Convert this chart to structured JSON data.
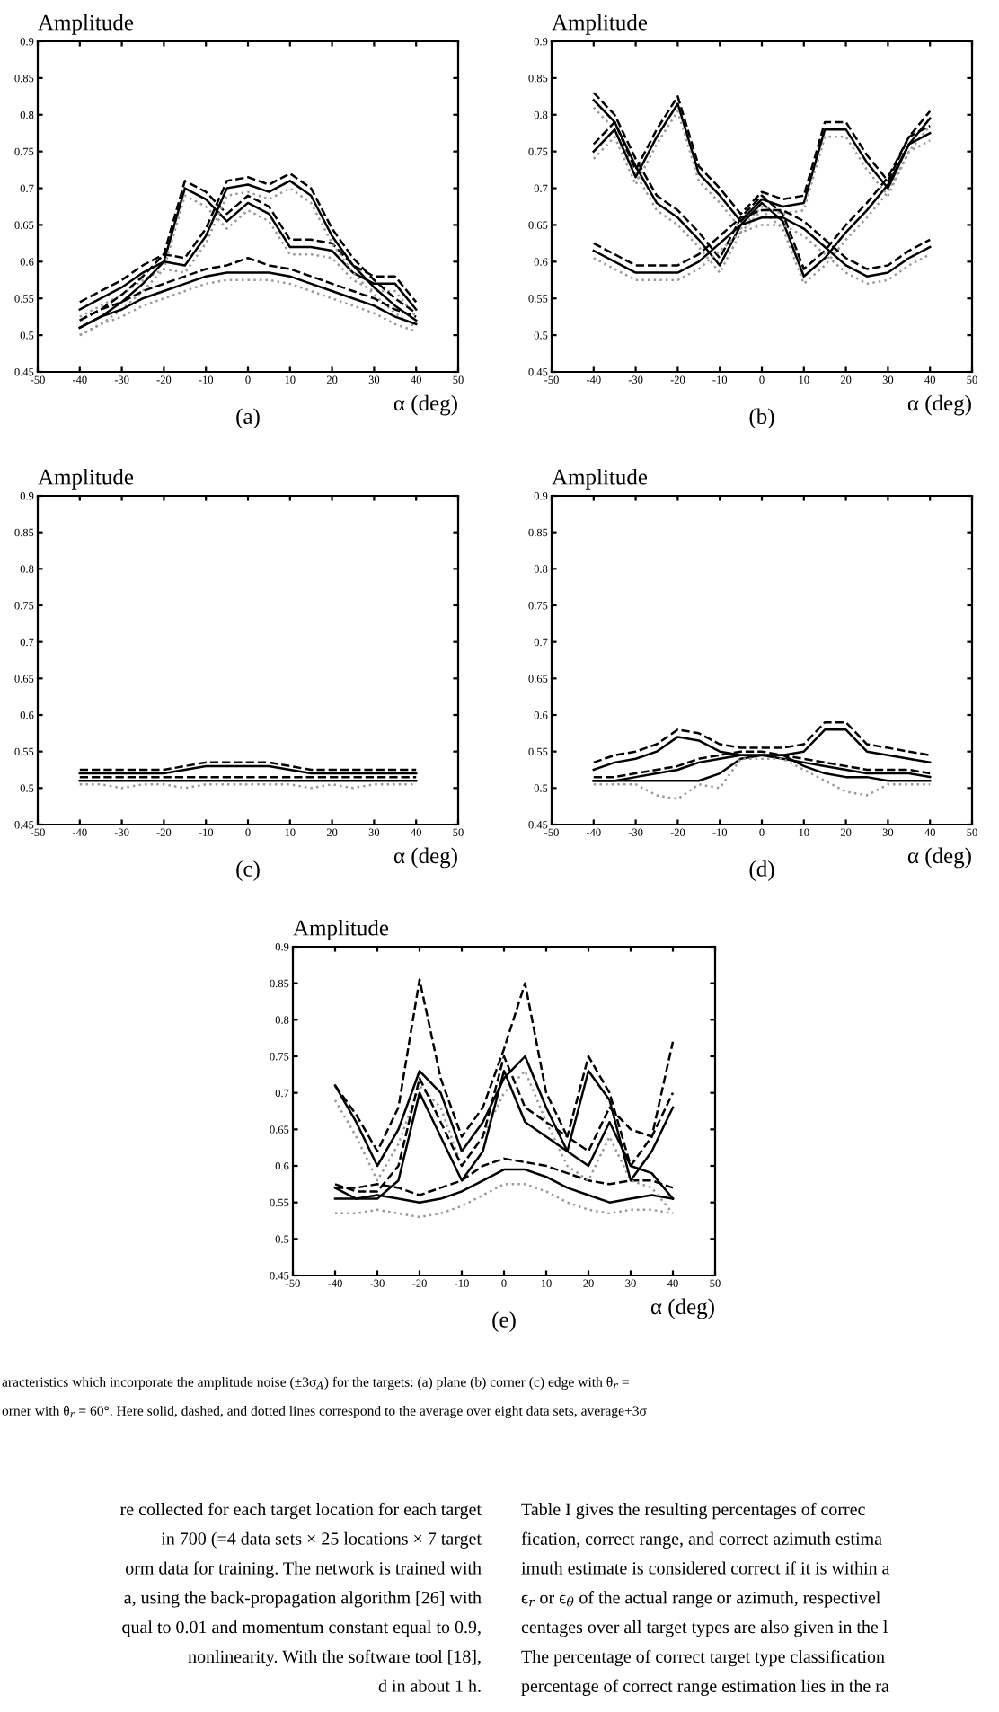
{
  "chart_data": [
    {
      "type": "line",
      "title": "Amplitude",
      "xlabel": "α (deg)",
      "annotations": [
        "(a)"
      ],
      "x": [
        -40,
        -35,
        -30,
        -25,
        -20,
        -15,
        -10,
        -5,
        0,
        5,
        10,
        15,
        20,
        25,
        30,
        35,
        40
      ],
      "xlim": [
        -50,
        50
      ],
      "xticks": [
        -50,
        -40,
        -30,
        -20,
        -10,
        0,
        10,
        20,
        30,
        40,
        50
      ],
      "ylim": [
        0.45,
        0.9
      ],
      "yticks": [
        0.45,
        0.5,
        0.55,
        0.6,
        0.65,
        0.7,
        0.75,
        0.8,
        0.85,
        0.9
      ],
      "series": [
        {
          "color": "#000000",
          "line_style": "solid",
          "values": [
            0.535,
            0.55,
            0.565,
            0.585,
            0.6,
            0.7,
            0.685,
            0.655,
            0.68,
            0.665,
            0.62,
            0.62,
            0.615,
            0.585,
            0.57,
            0.57,
            0.535
          ]
        },
        {
          "color": "#000000",
          "line_style": "dashed",
          "values": [
            0.545,
            0.56,
            0.575,
            0.595,
            0.61,
            0.71,
            0.695,
            0.665,
            0.69,
            0.675,
            0.63,
            0.63,
            0.625,
            0.595,
            0.58,
            0.58,
            0.545
          ]
        },
        {
          "color": "#999999",
          "line_style": "dotted",
          "values": [
            0.525,
            0.54,
            0.555,
            0.575,
            0.59,
            0.69,
            0.675,
            0.645,
            0.67,
            0.655,
            0.61,
            0.61,
            0.605,
            0.575,
            0.56,
            0.56,
            0.525
          ]
        },
        {
          "color": "#000000",
          "line_style": "solid",
          "values": [
            0.51,
            0.525,
            0.545,
            0.57,
            0.6,
            0.595,
            0.635,
            0.7,
            0.705,
            0.695,
            0.71,
            0.69,
            0.635,
            0.595,
            0.565,
            0.54,
            0.52
          ]
        },
        {
          "color": "#000000",
          "line_style": "dashed",
          "values": [
            0.52,
            0.535,
            0.555,
            0.58,
            0.61,
            0.605,
            0.645,
            0.71,
            0.715,
            0.705,
            0.72,
            0.7,
            0.645,
            0.605,
            0.575,
            0.55,
            0.53
          ]
        },
        {
          "color": "#999999",
          "line_style": "dotted",
          "values": [
            0.5,
            0.515,
            0.535,
            0.56,
            0.59,
            0.585,
            0.625,
            0.69,
            0.695,
            0.685,
            0.7,
            0.68,
            0.625,
            0.585,
            0.555,
            0.53,
            0.51
          ]
        },
        {
          "color": "#000000",
          "line_style": "solid",
          "values": [
            0.51,
            0.525,
            0.535,
            0.55,
            0.56,
            0.57,
            0.58,
            0.585,
            0.585,
            0.585,
            0.58,
            0.57,
            0.56,
            0.55,
            0.54,
            0.525,
            0.515
          ]
        },
        {
          "color": "#000000",
          "line_style": "dashed",
          "values": [
            0.52,
            0.535,
            0.545,
            0.56,
            0.57,
            0.58,
            0.59,
            0.595,
            0.605,
            0.595,
            0.59,
            0.58,
            0.57,
            0.56,
            0.55,
            0.535,
            0.525
          ]
        },
        {
          "color": "#999999",
          "line_style": "dotted",
          "values": [
            0.5,
            0.515,
            0.525,
            0.54,
            0.55,
            0.56,
            0.57,
            0.575,
            0.575,
            0.575,
            0.57,
            0.56,
            0.55,
            0.54,
            0.53,
            0.515,
            0.505
          ]
        }
      ]
    },
    {
      "type": "line",
      "title": "Amplitude",
      "xlabel": "α (deg)",
      "annotations": [
        "(b)"
      ],
      "x": [
        -40,
        -35,
        -30,
        -25,
        -20,
        -15,
        -10,
        -5,
        0,
        5,
        10,
        15,
        20,
        25,
        30,
        35,
        40
      ],
      "xlim": [
        -50,
        50
      ],
      "xticks": [
        -50,
        -40,
        -30,
        -20,
        -10,
        0,
        10,
        20,
        30,
        40,
        50
      ],
      "ylim": [
        0.45,
        0.9
      ],
      "yticks": [
        0.45,
        0.5,
        0.55,
        0.6,
        0.65,
        0.7,
        0.75,
        0.8,
        0.85,
        0.9
      ],
      "series": [
        {
          "color": "#000000",
          "line_style": "solid",
          "values": [
            0.82,
            0.79,
            0.73,
            0.68,
            0.66,
            0.63,
            0.595,
            0.65,
            0.68,
            0.655,
            0.58,
            0.605,
            0.64,
            0.67,
            0.705,
            0.76,
            0.795
          ]
        },
        {
          "color": "#000000",
          "line_style": "dashed",
          "values": [
            0.83,
            0.8,
            0.74,
            0.69,
            0.67,
            0.64,
            0.605,
            0.66,
            0.69,
            0.665,
            0.59,
            0.615,
            0.65,
            0.68,
            0.715,
            0.77,
            0.805
          ]
        },
        {
          "color": "#999999",
          "line_style": "dotted",
          "values": [
            0.81,
            0.78,
            0.72,
            0.67,
            0.65,
            0.62,
            0.585,
            0.64,
            0.67,
            0.645,
            0.57,
            0.595,
            0.63,
            0.66,
            0.695,
            0.75,
            0.785
          ]
        },
        {
          "color": "#000000",
          "line_style": "solid",
          "values": [
            0.75,
            0.78,
            0.715,
            0.77,
            0.815,
            0.72,
            0.69,
            0.655,
            0.685,
            0.675,
            0.68,
            0.78,
            0.78,
            0.735,
            0.7,
            0.76,
            0.775
          ]
        },
        {
          "color": "#000000",
          "line_style": "dashed",
          "values": [
            0.76,
            0.79,
            0.725,
            0.78,
            0.825,
            0.73,
            0.7,
            0.665,
            0.695,
            0.685,
            0.69,
            0.79,
            0.79,
            0.745,
            0.71,
            0.77,
            0.785
          ]
        },
        {
          "color": "#999999",
          "line_style": "dotted",
          "values": [
            0.74,
            0.77,
            0.705,
            0.76,
            0.805,
            0.71,
            0.68,
            0.645,
            0.675,
            0.665,
            0.67,
            0.77,
            0.77,
            0.725,
            0.69,
            0.75,
            0.765
          ]
        },
        {
          "color": "#000000",
          "line_style": "solid",
          "values": [
            0.615,
            0.6,
            0.585,
            0.585,
            0.585,
            0.6,
            0.625,
            0.65,
            0.66,
            0.66,
            0.645,
            0.62,
            0.595,
            0.58,
            0.585,
            0.605,
            0.62
          ]
        },
        {
          "color": "#000000",
          "line_style": "dashed",
          "values": [
            0.625,
            0.61,
            0.595,
            0.595,
            0.595,
            0.61,
            0.635,
            0.66,
            0.67,
            0.67,
            0.655,
            0.63,
            0.605,
            0.59,
            0.595,
            0.615,
            0.63
          ]
        },
        {
          "color": "#999999",
          "line_style": "dotted",
          "values": [
            0.605,
            0.59,
            0.575,
            0.575,
            0.575,
            0.59,
            0.615,
            0.64,
            0.65,
            0.65,
            0.635,
            0.61,
            0.585,
            0.57,
            0.575,
            0.595,
            0.61
          ]
        }
      ]
    },
    {
      "type": "line",
      "title": "Amplitude",
      "xlabel": "α (deg)",
      "annotations": [
        "(c)"
      ],
      "x": [
        -40,
        -35,
        -30,
        -25,
        -20,
        -15,
        -10,
        -5,
        0,
        5,
        10,
        15,
        20,
        25,
        30,
        35,
        40
      ],
      "xlim": [
        -50,
        50
      ],
      "xticks": [
        -50,
        -40,
        -30,
        -20,
        -10,
        0,
        10,
        20,
        30,
        40,
        50
      ],
      "ylim": [
        0.45,
        0.9
      ],
      "yticks": [
        0.45,
        0.5,
        0.55,
        0.6,
        0.65,
        0.7,
        0.75,
        0.8,
        0.85,
        0.9
      ],
      "series": [
        {
          "color": "#000000",
          "line_style": "solid",
          "values": [
            0.52,
            0.52,
            0.52,
            0.52,
            0.52,
            0.525,
            0.53,
            0.53,
            0.53,
            0.53,
            0.525,
            0.52,
            0.52,
            0.52,
            0.52,
            0.52,
            0.52
          ]
        },
        {
          "color": "#000000",
          "line_style": "dashed",
          "values": [
            0.525,
            0.525,
            0.525,
            0.525,
            0.525,
            0.53,
            0.535,
            0.535,
            0.535,
            0.535,
            0.53,
            0.525,
            0.525,
            0.525,
            0.525,
            0.525,
            0.525
          ]
        },
        {
          "color": "#000000",
          "line_style": "solid",
          "values": [
            0.51,
            0.51,
            0.51,
            0.51,
            0.51,
            0.51,
            0.51,
            0.51,
            0.51,
            0.51,
            0.51,
            0.51,
            0.51,
            0.51,
            0.51,
            0.51,
            0.51
          ]
        },
        {
          "color": "#000000",
          "line_style": "dashed",
          "values": [
            0.515,
            0.515,
            0.515,
            0.515,
            0.515,
            0.515,
            0.515,
            0.515,
            0.515,
            0.515,
            0.515,
            0.515,
            0.515,
            0.515,
            0.515,
            0.515,
            0.515
          ]
        },
        {
          "color": "#999999",
          "line_style": "dotted",
          "values": [
            0.505,
            0.505,
            0.5,
            0.505,
            0.505,
            0.5,
            0.505,
            0.505,
            0.505,
            0.505,
            0.505,
            0.5,
            0.505,
            0.5,
            0.505,
            0.505,
            0.505
          ]
        }
      ]
    },
    {
      "type": "line",
      "title": "Amplitude",
      "xlabel": "α (deg)",
      "annotations": [
        "(d)"
      ],
      "x": [
        -40,
        -35,
        -30,
        -25,
        -20,
        -15,
        -10,
        -5,
        0,
        5,
        10,
        15,
        20,
        25,
        30,
        35,
        40
      ],
      "xlim": [
        -50,
        50
      ],
      "xticks": [
        -50,
        -40,
        -30,
        -20,
        -10,
        0,
        10,
        20,
        30,
        40,
        50
      ],
      "ylim": [
        0.45,
        0.9
      ],
      "yticks": [
        0.45,
        0.5,
        0.55,
        0.6,
        0.65,
        0.7,
        0.75,
        0.8,
        0.85,
        0.9
      ],
      "series": [
        {
          "color": "#000000",
          "line_style": "solid",
          "values": [
            0.525,
            0.535,
            0.54,
            0.55,
            0.57,
            0.565,
            0.55,
            0.545,
            0.545,
            0.545,
            0.55,
            0.58,
            0.58,
            0.55,
            0.545,
            0.54,
            0.535
          ]
        },
        {
          "color": "#000000",
          "line_style": "dashed",
          "values": [
            0.535,
            0.545,
            0.55,
            0.56,
            0.58,
            0.575,
            0.56,
            0.555,
            0.555,
            0.555,
            0.56,
            0.59,
            0.59,
            0.56,
            0.555,
            0.55,
            0.545
          ]
        },
        {
          "color": "#000000",
          "line_style": "solid",
          "values": [
            0.51,
            0.51,
            0.515,
            0.52,
            0.525,
            0.535,
            0.54,
            0.545,
            0.545,
            0.54,
            0.535,
            0.53,
            0.525,
            0.52,
            0.52,
            0.52,
            0.515
          ]
        },
        {
          "color": "#000000",
          "line_style": "dashed",
          "values": [
            0.515,
            0.515,
            0.52,
            0.525,
            0.53,
            0.54,
            0.545,
            0.55,
            0.55,
            0.545,
            0.54,
            0.535,
            0.53,
            0.525,
            0.525,
            0.525,
            0.52
          ]
        },
        {
          "color": "#000000",
          "line_style": "solid",
          "values": [
            0.51,
            0.51,
            0.51,
            0.51,
            0.51,
            0.51,
            0.52,
            0.54,
            0.545,
            0.545,
            0.53,
            0.52,
            0.515,
            0.515,
            0.51,
            0.51,
            0.51
          ]
        },
        {
          "color": "#999999",
          "line_style": "dotted",
          "values": [
            0.505,
            0.505,
            0.505,
            0.49,
            0.485,
            0.505,
            0.5,
            0.54,
            0.54,
            0.54,
            0.525,
            0.51,
            0.495,
            0.49,
            0.505,
            0.505,
            0.505
          ]
        }
      ]
    },
    {
      "type": "line",
      "title": "Amplitude",
      "xlabel": "α (deg)",
      "annotations": [
        "(e)"
      ],
      "x": [
        -40,
        -35,
        -30,
        -25,
        -20,
        -15,
        -10,
        -5,
        0,
        5,
        10,
        15,
        20,
        25,
        30,
        35,
        40
      ],
      "xlim": [
        -50,
        50
      ],
      "xticks": [
        -50,
        -40,
        -30,
        -20,
        -10,
        0,
        10,
        20,
        30,
        40,
        50
      ],
      "ylim": [
        0.45,
        0.9
      ],
      "yticks": [
        0.45,
        0.5,
        0.55,
        0.6,
        0.65,
        0.7,
        0.75,
        0.8,
        0.85,
        0.9
      ],
      "series": [
        {
          "color": "#000000",
          "line_style": "solid",
          "values": [
            0.555,
            0.555,
            0.56,
            0.555,
            0.55,
            0.555,
            0.565,
            0.58,
            0.595,
            0.595,
            0.585,
            0.57,
            0.56,
            0.55,
            0.555,
            0.56,
            0.555
          ]
        },
        {
          "color": "#000000",
          "line_style": "dashed",
          "values": [
            0.57,
            0.57,
            0.575,
            0.57,
            0.56,
            0.57,
            0.58,
            0.6,
            0.61,
            0.605,
            0.6,
            0.59,
            0.58,
            0.575,
            0.58,
            0.58,
            0.57
          ]
        },
        {
          "color": "#999999",
          "line_style": "dotted",
          "values": [
            0.535,
            0.535,
            0.54,
            0.535,
            0.53,
            0.535,
            0.545,
            0.56,
            0.575,
            0.575,
            0.565,
            0.55,
            0.54,
            0.535,
            0.54,
            0.54,
            0.535
          ]
        },
        {
          "color": "#000000",
          "line_style": "solid",
          "values": [
            0.71,
            0.66,
            0.6,
            0.65,
            0.73,
            0.7,
            0.62,
            0.66,
            0.72,
            0.75,
            0.68,
            0.62,
            0.6,
            0.66,
            0.6,
            0.59,
            0.555
          ]
        },
        {
          "color": "#000000",
          "line_style": "dashed",
          "values": [
            0.71,
            0.67,
            0.62,
            0.68,
            0.855,
            0.72,
            0.64,
            0.68,
            0.76,
            0.85,
            0.7,
            0.64,
            0.62,
            0.68,
            0.65,
            0.64,
            0.77
          ]
        },
        {
          "color": "#999999",
          "line_style": "dotted",
          "values": [
            0.69,
            0.64,
            0.58,
            0.63,
            0.71,
            0.68,
            0.6,
            0.64,
            0.7,
            0.73,
            0.66,
            0.6,
            0.58,
            0.64,
            0.58,
            0.57,
            0.535
          ]
        },
        {
          "color": "#000000",
          "line_style": "solid",
          "values": [
            0.57,
            0.555,
            0.555,
            0.58,
            0.7,
            0.64,
            0.58,
            0.62,
            0.73,
            0.66,
            0.64,
            0.62,
            0.73,
            0.69,
            0.58,
            0.62,
            0.68
          ]
        },
        {
          "color": "#000000",
          "line_style": "dashed",
          "values": [
            0.575,
            0.565,
            0.565,
            0.6,
            0.72,
            0.66,
            0.6,
            0.64,
            0.75,
            0.68,
            0.66,
            0.64,
            0.75,
            0.7,
            0.6,
            0.64,
            0.7
          ]
        }
      ]
    },
    {
      "type": "other",
      "annotations": [
        "aracteristics which incorporate the amplitude noise (±3σ$_{A}$) for the targets: (a) plane (b) corner (c) edge with θ$_{r}$ =",
        "orner with θ$_{r}$ = 60°. Here solid, dashed, and dotted lines correspond to the average over eight data sets, average+3σ",
        "re collected for each target location for each target",
        "in 700 (=4 data sets × 25 locations × 7 target",
        "orm data for training. The network is trained with",
        "a, using the back-propagation algorithm [26] with",
        "qual to 0.01 and momentum constant equal to 0.9,",
        "nonlinearity. With the software tool [18],",
        "d in about 1 h.",
        "Table I gives the resulting percentages of correc",
        "fication, correct range, and correct azimuth estima",
        "imuth estimate is considered correct if it is within a",
        "ϵ$_{r}$ or ϵ$_{θ}$ of the actual range or azimuth, respectivel",
        "centages over all target types are also given in the l",
        "The percentage of correct target type classification",
        "percentage of correct range estimation lies in the ra"
      ]
    }
  ]
}
